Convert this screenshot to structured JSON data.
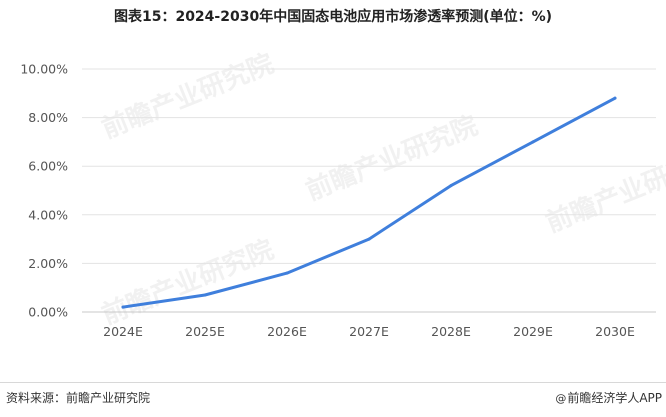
{
  "title": "图表15：2024-2030年中国固态电池应用市场渗透率预测(单位：%)",
  "footer": {
    "source": "资料来源：前瞻产业研究院",
    "brand_symbol": "@",
    "brand": "前瞻经济学人APP"
  },
  "watermark_text": "前瞻产业研究院",
  "colors": {
    "line": "#3f7fdc",
    "grid": "#e3e3e3",
    "axis": "#c8c8c8",
    "tick_text": "#555555"
  },
  "chart_data": {
    "type": "line",
    "title": "图表15：2024-2030年中国固态电池应用市场渗透率预测(单位：%)",
    "categories": [
      "2024E",
      "2025E",
      "2026E",
      "2027E",
      "2028E",
      "2029E",
      "2030E"
    ],
    "series": [
      {
        "values": [
          0.2,
          0.7,
          1.6,
          3.0,
          5.2,
          7.0,
          8.8
        ]
      }
    ],
    "yticks": [
      "0.00%",
      "2.00%",
      "4.00%",
      "6.00%",
      "8.00%",
      "10.00%"
    ],
    "ylim": [
      0,
      10
    ],
    "y_unit": "%",
    "grid": true,
    "legend": "none"
  }
}
